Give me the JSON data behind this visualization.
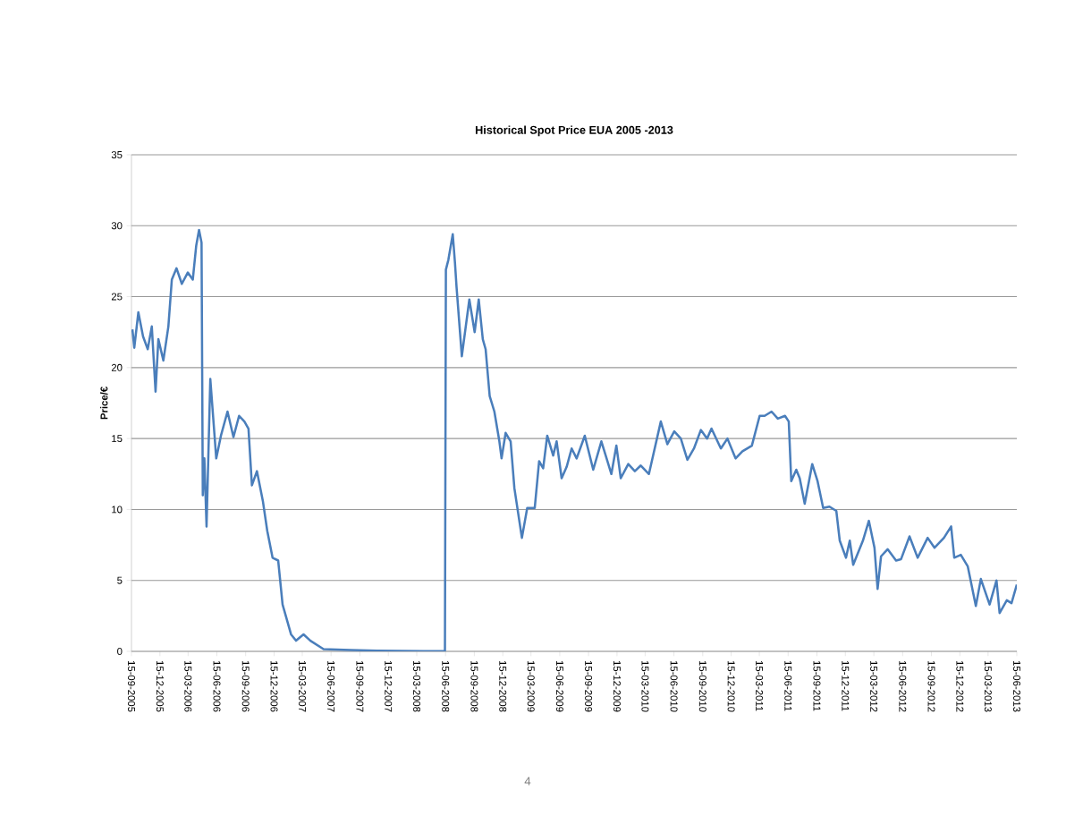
{
  "chart_data": {
    "type": "line",
    "title": "Historical Spot Price EUA 2005 -2013",
    "ylabel": "Price/€",
    "annotations": [
      "4"
    ],
    "x": [
      "2005-09-18",
      "2005-09-24",
      "2005-10-07",
      "2005-10-22",
      "2005-11-06",
      "2005-11-19",
      "2005-12-01",
      "2005-12-10",
      "2005-12-26",
      "2006-01-11",
      "2006-01-22",
      "2006-02-06",
      "2006-02-23",
      "2006-03-14",
      "2006-03-30",
      "2006-04-10",
      "2006-04-19",
      "2006-04-27",
      "2006-05-01",
      "2006-05-06",
      "2006-05-13",
      "2006-05-25",
      "2006-06-13",
      "2006-06-28",
      "2006-07-19",
      "2006-08-07",
      "2006-08-25",
      "2006-09-11",
      "2006-09-24",
      "2006-10-05",
      "2006-10-21",
      "2006-11-09",
      "2006-11-23",
      "2006-12-10",
      "2006-12-28",
      "2007-01-11",
      "2007-02-07",
      "2007-02-23",
      "2007-03-19",
      "2007-04-10",
      "2007-05-22",
      "2007-08-16",
      "2007-11-09",
      "2008-04-05",
      "2008-06-13",
      "2008-06-16",
      "2008-06-24",
      "2008-07-08",
      "2008-07-15",
      "2008-07-20",
      "2008-08-06",
      "2008-08-30",
      "2008-09-16",
      "2008-09-29",
      "2008-10-12",
      "2008-10-21",
      "2008-11-03",
      "2008-11-18",
      "2008-12-04",
      "2008-12-11",
      "2008-12-24",
      "2009-01-09",
      "2009-01-21",
      "2009-02-14",
      "2009-03-03",
      "2009-03-27",
      "2009-04-10",
      "2009-04-23",
      "2009-05-06",
      "2009-05-25",
      "2009-06-05",
      "2009-06-21",
      "2009-07-07",
      "2009-07-23",
      "2009-08-08",
      "2009-09-03",
      "2009-09-30",
      "2009-10-26",
      "2009-11-27",
      "2009-12-13",
      "2009-12-27",
      "2010-01-20",
      "2010-02-10",
      "2010-03-01",
      "2010-03-27",
      "2010-05-04",
      "2010-05-25",
      "2010-06-16",
      "2010-07-07",
      "2010-07-28",
      "2010-08-18",
      "2010-09-09",
      "2010-09-29",
      "2010-10-13",
      "2010-11-12",
      "2010-12-03",
      "2010-12-29",
      "2011-01-20",
      "2011-02-19",
      "2011-03-16",
      "2011-04-01",
      "2011-04-23",
      "2011-05-13",
      "2011-06-05",
      "2011-06-17",
      "2011-06-25",
      "2011-07-11",
      "2011-07-22",
      "2011-08-07",
      "2011-08-31",
      "2011-09-17",
      "2011-10-05",
      "2011-10-25",
      "2011-11-16",
      "2011-11-27",
      "2011-12-17",
      "2011-12-29",
      "2012-01-09",
      "2012-02-09",
      "2012-02-28",
      "2012-03-17",
      "2012-03-27",
      "2012-04-07",
      "2012-04-28",
      "2012-05-25",
      "2012-06-10",
      "2012-07-07",
      "2012-08-02",
      "2012-09-03",
      "2012-09-25",
      "2012-10-25",
      "2012-11-17",
      "2012-11-27",
      "2012-12-18",
      "2013-01-09",
      "2013-02-04",
      "2013-02-20",
      "2013-03-20",
      "2013-04-11",
      "2013-04-21",
      "2013-05-14",
      "2013-05-29",
      "2013-06-15"
    ],
    "series": [
      {
        "color": "#4a7ebb",
        "values": [
          22.7,
          21.4,
          23.9,
          22.2,
          21.3,
          22.9,
          18.3,
          22.0,
          20.5,
          22.9,
          26.2,
          27.0,
          25.9,
          26.7,
          26.2,
          28.6,
          29.7,
          28.8,
          11.0,
          13.6,
          8.8,
          19.2,
          13.6,
          15.2,
          16.9,
          15.1,
          16.6,
          16.2,
          15.7,
          11.7,
          12.7,
          10.6,
          8.5,
          6.6,
          6.4,
          3.3,
          1.2,
          0.75,
          1.2,
          0.75,
          0.16,
          0.1,
          0.05,
          0.02,
          0.01,
          26.9,
          27.6,
          29.4,
          27.4,
          25.7,
          20.8,
          24.8,
          22.5,
          24.8,
          22.0,
          21.3,
          18.0,
          16.9,
          14.8,
          13.6,
          15.4,
          14.8,
          11.5,
          8.0,
          10.1,
          10.1,
          13.4,
          12.9,
          15.2,
          13.8,
          14.8,
          12.2,
          13.0,
          14.3,
          13.6,
          15.2,
          12.8,
          14.8,
          12.5,
          14.5,
          12.2,
          13.2,
          12.7,
          13.1,
          12.5,
          16.2,
          14.6,
          15.5,
          15.0,
          13.5,
          14.3,
          15.6,
          15.0,
          15.7,
          14.3,
          15.0,
          13.6,
          14.1,
          14.5,
          16.6,
          16.6,
          16.9,
          16.4,
          16.6,
          16.2,
          12.0,
          12.8,
          12.2,
          10.4,
          13.2,
          12.0,
          10.1,
          10.2,
          9.9,
          7.8,
          6.6,
          7.8,
          6.1,
          7.8,
          9.2,
          7.3,
          4.4,
          6.7,
          7.2,
          6.4,
          6.5,
          8.1,
          6.6,
          8.0,
          7.3,
          8.0,
          8.8,
          6.6,
          6.8,
          6.0,
          3.2,
          5.1,
          3.3,
          5.0,
          2.7,
          3.6,
          3.4,
          4.7
        ]
      }
    ],
    "xlim": [
      "2005-09-15",
      "2013-06-15"
    ],
    "ylim": [
      0,
      35
    ],
    "yticks": [
      0,
      5,
      10,
      15,
      20,
      25,
      30,
      35
    ],
    "xticks": [
      {
        "value": "2005-09-15",
        "label": "15-09-2005"
      },
      {
        "value": "2005-12-15",
        "label": "15-12-2005"
      },
      {
        "value": "2006-03-15",
        "label": "15-03-2006"
      },
      {
        "value": "2006-06-15",
        "label": "15-06-2006"
      },
      {
        "value": "2006-09-15",
        "label": "15-09-2006"
      },
      {
        "value": "2006-12-15",
        "label": "15-12-2006"
      },
      {
        "value": "2007-03-15",
        "label": "15-03-2007"
      },
      {
        "value": "2007-06-15",
        "label": "15-06-2007"
      },
      {
        "value": "2007-09-15",
        "label": "15-09-2007"
      },
      {
        "value": "2007-12-15",
        "label": "15-12-2007"
      },
      {
        "value": "2008-03-15",
        "label": "15-03-2008"
      },
      {
        "value": "2008-06-15",
        "label": "15-06-2008"
      },
      {
        "value": "2008-09-15",
        "label": "15-09-2008"
      },
      {
        "value": "2008-12-15",
        "label": "15-12-2008"
      },
      {
        "value": "2009-03-15",
        "label": "15-03-2009"
      },
      {
        "value": "2009-06-15",
        "label": "15-06-2009"
      },
      {
        "value": "2009-09-15",
        "label": "15-09-2009"
      },
      {
        "value": "2009-12-15",
        "label": "15-12-2009"
      },
      {
        "value": "2010-03-15",
        "label": "15-03-2010"
      },
      {
        "value": "2010-06-15",
        "label": "15-06-2010"
      },
      {
        "value": "2010-09-15",
        "label": "15-09-2010"
      },
      {
        "value": "2010-12-15",
        "label": "15-12-2010"
      },
      {
        "value": "2011-03-15",
        "label": "15-03-2011"
      },
      {
        "value": "2011-06-15",
        "label": "15-06-2011"
      },
      {
        "value": "2011-09-15",
        "label": "15-09-2011"
      },
      {
        "value": "2011-12-15",
        "label": "15-12-2011"
      },
      {
        "value": "2012-03-15",
        "label": "15-03-2012"
      },
      {
        "value": "2012-06-15",
        "label": "15-06-2012"
      },
      {
        "value": "2012-09-15",
        "label": "15-09-2012"
      },
      {
        "value": "2012-12-15",
        "label": "15-12-2012"
      },
      {
        "value": "2013-03-15",
        "label": "15-03-2013"
      },
      {
        "value": "2013-06-15",
        "label": "15-06-2013"
      }
    ],
    "grid": "y",
    "marker": "none",
    "line_style": "solid"
  }
}
